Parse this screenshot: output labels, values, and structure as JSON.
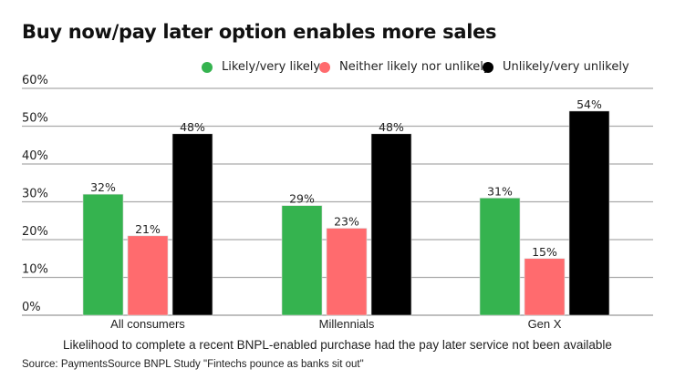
{
  "chart_data": {
    "type": "bar",
    "title": "Buy now/pay later option enables more sales",
    "categories": [
      "All consumers",
      "Millennials",
      "Gen X"
    ],
    "series": [
      {
        "name": "Likely/very likely",
        "color": "#35b34f",
        "values": [
          32,
          29,
          31
        ]
      },
      {
        "name": "Neither likely nor unlikely",
        "color": "#ff6b6e",
        "values": [
          21,
          23,
          15
        ]
      },
      {
        "name": "Unlikely/very unlikely",
        "color": "#000000",
        "values": [
          48,
          48,
          54
        ]
      }
    ],
    "xlabel": "Likelihood to complete a recent BNPL-enabled purchase had the pay later service not been available",
    "ylabel": "",
    "ylim": [
      0,
      60
    ],
    "yticks": [
      0,
      10,
      20,
      30,
      40,
      50,
      60
    ],
    "ytick_labels": [
      "0%",
      "10%",
      "20%",
      "30%",
      "40%",
      "50%",
      "60%"
    ],
    "value_suffix": "%",
    "grid": true,
    "legend_position": "top-right",
    "source": "Source: PaymentsSource BNPL Study \"Fintechs pounce as banks sit out\""
  }
}
